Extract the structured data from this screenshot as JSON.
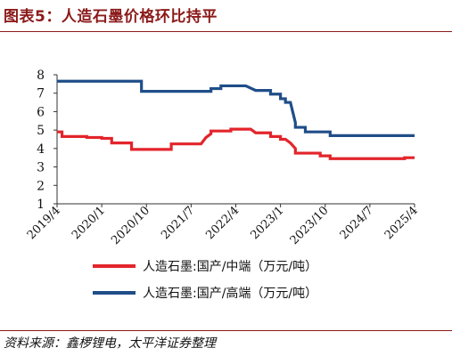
{
  "header": {
    "title": "图表5：人造石墨价格环比持平"
  },
  "footer": {
    "source": "资料来源：鑫椤锂电，太平洋证券整理"
  },
  "chart_data": {
    "type": "line",
    "title": "图表5：人造石墨价格环比持平",
    "ylim": [
      1,
      8
    ],
    "yticks": [
      1,
      2,
      3,
      4,
      5,
      6,
      7,
      8
    ],
    "xticks": [
      "2019/4",
      "2020/1",
      "2020/10",
      "2021/7",
      "2022/4",
      "2023/1",
      "2023/10",
      "2024/7",
      "2025/4"
    ],
    "xrange": [
      "2019/4",
      "2025/4"
    ],
    "grid": false,
    "legend_position": "bottom",
    "series": [
      {
        "name": "人造石墨:国产/中端（万元/吨）",
        "color": "#e3242b",
        "points": [
          [
            "2019/4",
            4.9
          ],
          [
            "2019/5",
            4.9
          ],
          [
            "2019/5",
            4.65
          ],
          [
            "2019/10",
            4.65
          ],
          [
            "2019/10",
            4.6
          ],
          [
            "2020/1",
            4.6
          ],
          [
            "2020/1",
            4.55
          ],
          [
            "2020/3",
            4.55
          ],
          [
            "2020/3",
            4.3
          ],
          [
            "2020/7",
            4.3
          ],
          [
            "2020/7",
            3.95
          ],
          [
            "2021/3",
            3.95
          ],
          [
            "2021/3",
            4.25
          ],
          [
            "2021/9",
            4.25
          ],
          [
            "2021/10",
            4.6
          ],
          [
            "2021/11",
            4.8
          ],
          [
            "2021/11",
            4.95
          ],
          [
            "2022/3",
            4.95
          ],
          [
            "2022/3",
            5.05
          ],
          [
            "2022/7",
            5.05
          ],
          [
            "2022/8",
            4.85
          ],
          [
            "2022/11",
            4.85
          ],
          [
            "2022/11",
            4.65
          ],
          [
            "2023/1",
            4.65
          ],
          [
            "2023/1",
            4.5
          ],
          [
            "2023/2",
            4.5
          ],
          [
            "2023/3",
            4.3
          ],
          [
            "2023/4",
            4.0
          ],
          [
            "2023/4",
            3.75
          ],
          [
            "2023/9",
            3.75
          ],
          [
            "2023/9",
            3.6
          ],
          [
            "2023/11",
            3.6
          ],
          [
            "2023/11",
            3.45
          ],
          [
            "2025/2",
            3.45
          ],
          [
            "2025/2",
            3.5
          ],
          [
            "2025/4",
            3.5
          ]
        ]
      },
      {
        "name": "人造石墨:国产/高端（万元/吨）",
        "color": "#1f4e89",
        "points": [
          [
            "2019/4",
            7.65
          ],
          [
            "2020/9",
            7.65
          ],
          [
            "2020/9",
            7.1
          ],
          [
            "2021/11",
            7.1
          ],
          [
            "2021/11",
            7.25
          ],
          [
            "2022/1",
            7.25
          ],
          [
            "2022/1",
            7.4
          ],
          [
            "2022/6",
            7.4
          ],
          [
            "2022/8",
            7.15
          ],
          [
            "2022/11",
            7.15
          ],
          [
            "2022/11",
            6.95
          ],
          [
            "2023/1",
            6.95
          ],
          [
            "2023/1",
            6.7
          ],
          [
            "2023/2",
            6.7
          ],
          [
            "2023/2",
            6.5
          ],
          [
            "2023/3",
            6.5
          ],
          [
            "2023/4",
            5.4
          ],
          [
            "2023/4",
            5.15
          ],
          [
            "2023/6",
            5.15
          ],
          [
            "2023/6",
            4.9
          ],
          [
            "2023/11",
            4.9
          ],
          [
            "2023/11",
            4.7
          ],
          [
            "2025/4",
            4.7
          ]
        ]
      }
    ]
  }
}
